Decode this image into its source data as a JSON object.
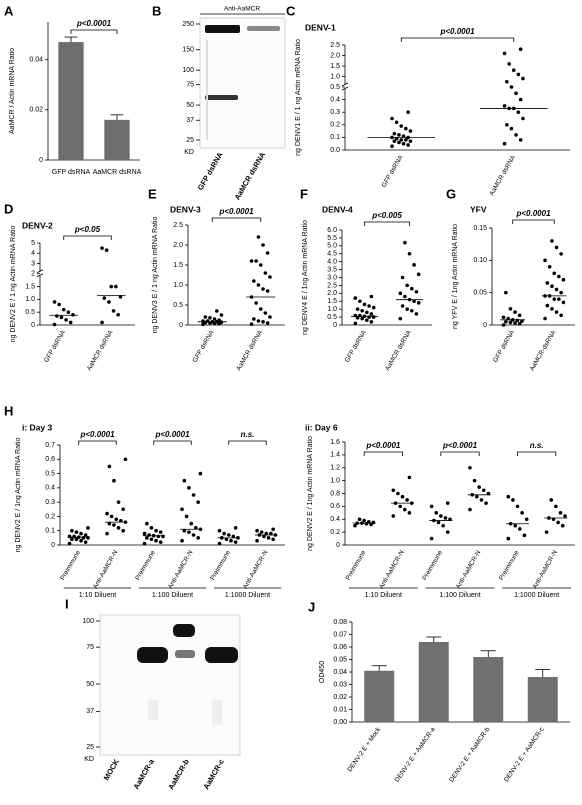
{
  "chart_data": [
    {
      "type": "bar",
      "panel": "A",
      "ylabel": "AaMCR / Actin mRNA Ratio",
      "categories": [
        "GFP dsRNA",
        "AaMCR dsRNA"
      ],
      "values": [
        0.047,
        0.016
      ],
      "errors": [
        0.002,
        0.002
      ],
      "color": "#6e6e6e",
      "ylim": [
        0,
        0.055
      ],
      "yticks": [
        0,
        0.02,
        0.04
      ],
      "annotations": [
        "p<0.0001"
      ]
    },
    {
      "type": "dot",
      "panel": "C",
      "title": "DENV-1",
      "ylabel": "ng DENV1 E / 1 ng Actin mRNA Ratio",
      "ylim": [
        0,
        2.5
      ],
      "ybreak": 0.5,
      "yticks": [
        {
          "value": 0,
          "label": "0.0"
        },
        0.1,
        0.2,
        0.3,
        0.4,
        0.5,
        {
          "value": 1,
          "label": "1.0"
        },
        1.5,
        {
          "value": 2,
          "label": "2.0"
        },
        2.5
      ],
      "annotations": [
        "p<0.0001"
      ],
      "groups": [
        {
          "name": "GFP dsRNA",
          "median": 0.1,
          "values": [
            0.03,
            0.04,
            0.05,
            0.06,
            0.07,
            0.07,
            0.08,
            0.08,
            0.09,
            0.1,
            0.1,
            0.11,
            0.12,
            0.13,
            0.15,
            0.17,
            0.19,
            0.22,
            0.25,
            0.3
          ]
        },
        {
          "name": "AaMCR dsRNA",
          "median": 0.33,
          "values": [
            0.05,
            0.08,
            0.12,
            0.17,
            0.2,
            0.25,
            0.3,
            0.33,
            0.33,
            0.35,
            0.4,
            0.45,
            0.5,
            0.75,
            0.9,
            1.1,
            1.3,
            1.6,
            2.1,
            2.3
          ]
        }
      ]
    },
    {
      "type": "dot",
      "panel": "D",
      "title": "DENV-2",
      "ylabel": "ng DENV2 E / 1 ng Actin mRNA Ratio",
      "ylim": [
        0,
        5
      ],
      "ybreak": 2,
      "yticks": [
        0,
        0.5,
        {
          "value": 1,
          "label": "1.0"
        },
        1.5,
        2,
        3,
        4,
        5
      ],
      "annotations": [
        "p<0.05"
      ],
      "groups": [
        {
          "name": "GFP dsRNA",
          "median": 0.38,
          "values": [
            0.02,
            0.1,
            0.2,
            0.3,
            0.35,
            0.4,
            0.5,
            0.6,
            0.8,
            0.9
          ]
        },
        {
          "name": "AaMCR dsRNA",
          "median": 1.15,
          "values": [
            0.1,
            0.4,
            0.55,
            0.9,
            1.05,
            1.1,
            1.5,
            1.5,
            4.3,
            4.5
          ]
        }
      ]
    },
    {
      "type": "dot",
      "panel": "E",
      "title": "DENV-3",
      "ylabel": "ng DENV3 E / 1 ng Actin mRNA Ratio",
      "ylim": [
        0,
        2.5
      ],
      "yticks": [
        0,
        0.5,
        {
          "value": 1,
          "label": "1.0"
        },
        1.5,
        {
          "value": 2,
          "label": "2.0"
        },
        2.5
      ],
      "annotations": [
        "p<0.0001"
      ],
      "groups": [
        {
          "name": "GFP dsRNA",
          "median": 0.08,
          "values": [
            0.02,
            0.03,
            0.04,
            0.05,
            0.06,
            0.07,
            0.08,
            0.08,
            0.1,
            0.1,
            0.12,
            0.15,
            0.18,
            0.2,
            0.25,
            0.35
          ]
        },
        {
          "name": "AaMCR dsRNA",
          "median": 0.7,
          "values": [
            0.02,
            0.05,
            0.08,
            0.1,
            0.15,
            0.2,
            0.3,
            0.4,
            0.55,
            0.7,
            0.85,
            0.9,
            1.0,
            1.1,
            1.2,
            1.3,
            1.5,
            1.6,
            1.6,
            1.8,
            2.0,
            2.2
          ]
        }
      ]
    },
    {
      "type": "dot",
      "panel": "F",
      "title": "DENV-4",
      "ylabel": "ng DENV4 E / 1ng Actin mRNA Ratio",
      "ylim": [
        0,
        6
      ],
      "yticks": [
        0,
        0.5,
        {
          "value": 1,
          "label": "1.0"
        },
        1.5,
        {
          "value": 2,
          "label": "2.0"
        },
        2.5,
        {
          "value": 3,
          "label": "3.0"
        },
        3.5,
        {
          "value": 4,
          "label": "4.0"
        },
        4.5,
        {
          "value": 5,
          "label": "5.0"
        },
        5.5,
        {
          "value": 6,
          "label": "6.0"
        }
      ],
      "annotations": [
        "p<0.005"
      ],
      "groups": [
        {
          "name": "GFP dsRNA",
          "median": 0.55,
          "values": [
            0.1,
            0.2,
            0.3,
            0.4,
            0.45,
            0.5,
            0.5,
            0.55,
            0.6,
            0.6,
            0.7,
            0.8,
            0.9,
            1.0,
            1.1,
            1.2,
            1.3,
            1.5,
            1.7,
            1.8
          ]
        },
        {
          "name": "AaMCR dsRNA",
          "median": 1.6,
          "values": [
            0.4,
            0.7,
            0.9,
            1.0,
            1.2,
            1.4,
            1.5,
            1.6,
            1.8,
            2.0,
            2.1,
            2.3,
            2.5,
            3.0,
            3.2,
            3.8,
            4.5,
            5.2
          ]
        }
      ]
    },
    {
      "type": "dot",
      "panel": "G",
      "title": "YFV",
      "ylabel": "ng YFV E / 1ng Actin mRNA Ratio",
      "ylim": [
        0,
        0.15
      ],
      "yticks": [
        0,
        0.05,
        {
          "value": 0.1,
          "label": "0.10"
        },
        0.15
      ],
      "annotations": [
        "p<0.0001"
      ],
      "groups": [
        {
          "name": "GFP dsRNA",
          "median": 0.008,
          "values": [
            0,
            0.002,
            0.003,
            0.004,
            0.005,
            0.006,
            0.007,
            0.008,
            0.01,
            0.012,
            0.015,
            0.02,
            0.025,
            0.05
          ]
        },
        {
          "name": "AaMCR-dsRNA",
          "median": 0.045,
          "values": [
            0.01,
            0.015,
            0.02,
            0.025,
            0.03,
            0.035,
            0.04,
            0.04,
            0.045,
            0.045,
            0.05,
            0.055,
            0.06,
            0.065,
            0.07,
            0.075,
            0.08,
            0.09,
            0.1,
            0.11,
            0.12,
            0.13
          ]
        }
      ]
    },
    {
      "type": "dot",
      "panel": "H",
      "title": "i: Day 3",
      "ylabel": "ng DENV2 E / 1ng Actin mRNA Ratio",
      "ylim": [
        0,
        0.7
      ],
      "yticks": [
        0,
        0.1,
        0.2,
        0.3,
        0.4,
        0.5,
        0.6,
        0.7
      ],
      "annotations": [
        "p<0.0001",
        "p<0.0001",
        "n.s."
      ],
      "group_labels": [
        "1:10 Diluent",
        "1:100 Diluent",
        "1:1000 Diluent"
      ],
      "groups": [
        {
          "name": "Preimmune",
          "median": 0.055,
          "values": [
            0.01,
            0.02,
            0.03,
            0.04,
            0.04,
            0.05,
            0.05,
            0.055,
            0.06,
            0.06,
            0.07,
            0.08,
            0.09,
            0.1,
            0.12
          ]
        },
        {
          "name": "Anti-AaMCR-N",
          "median": 0.16,
          "values": [
            0.08,
            0.1,
            0.12,
            0.14,
            0.15,
            0.16,
            0.17,
            0.18,
            0.2,
            0.22,
            0.25,
            0.3,
            0.45,
            0.55,
            0.6
          ]
        },
        {
          "name": "Preimmune",
          "median": 0.065,
          "values": [
            0.01,
            0.02,
            0.03,
            0.04,
            0.05,
            0.06,
            0.06,
            0.065,
            0.07,
            0.08,
            0.09,
            0.1,
            0.12,
            0.15
          ]
        },
        {
          "name": "Anti-AaMCR-N",
          "median": 0.11,
          "values": [
            0.03,
            0.05,
            0.07,
            0.09,
            0.1,
            0.11,
            0.12,
            0.15,
            0.2,
            0.25,
            0.3,
            0.35,
            0.4,
            0.45,
            0.5
          ]
        },
        {
          "name": "Preimmune",
          "median": 0.05,
          "values": [
            0.01,
            0.02,
            0.03,
            0.04,
            0.05,
            0.05,
            0.06,
            0.07,
            0.08,
            0.1,
            0.12
          ]
        },
        {
          "name": "Anti-AaMCR-N",
          "median": 0.07,
          "values": [
            0.03,
            0.04,
            0.05,
            0.06,
            0.07,
            0.07,
            0.08,
            0.08,
            0.09,
            0.1,
            0.11
          ]
        }
      ]
    },
    {
      "type": "dot",
      "title": "ii: Day 6",
      "ylabel": "ng DENV2 E / 1ng Actin mRNA Ratio",
      "ylim": [
        0,
        1.6
      ],
      "yticks": [
        0,
        0.2,
        0.4,
        0.6,
        0.8,
        {
          "value": 1,
          "label": "1.0"
        },
        1.2,
        1.4,
        1.6
      ],
      "annotations": [
        "p<0.0001",
        "p<0.0001",
        "n.s."
      ],
      "group_labels": [
        "1:10 Diluent",
        "1:100 Diluent",
        "1:1000 Diluent"
      ],
      "groups": [
        {
          "name": "Preimmune",
          "median": 0.34,
          "values": [
            0.3,
            0.32,
            0.33,
            0.34,
            0.34,
            0.35,
            0.36,
            0.38,
            0.4
          ]
        },
        {
          "name": "Anti-AaMCR-N",
          "median": 0.65,
          "values": [
            0.45,
            0.5,
            0.55,
            0.6,
            0.65,
            0.65,
            0.7,
            0.75,
            0.8,
            0.85,
            1.05
          ]
        },
        {
          "name": "Preimmune",
          "median": 0.38,
          "values": [
            0.1,
            0.2,
            0.3,
            0.35,
            0.38,
            0.4,
            0.42,
            0.45,
            0.5,
            0.6,
            0.65
          ]
        },
        {
          "name": "Anti-AaMCR-N",
          "median": 0.78,
          "values": [
            0.55,
            0.65,
            0.7,
            0.75,
            0.78,
            0.8,
            0.85,
            0.9,
            1.0,
            1.2
          ]
        },
        {
          "name": "Preimmune",
          "median": 0.33,
          "values": [
            0.1,
            0.15,
            0.25,
            0.3,
            0.33,
            0.4,
            0.5,
            0.6,
            0.7,
            0.75
          ]
        },
        {
          "name": "Anti-AaMCR-N",
          "median": 0.42,
          "values": [
            0.2,
            0.3,
            0.35,
            0.4,
            0.42,
            0.45,
            0.5,
            0.6,
            0.7
          ]
        }
      ]
    },
    {
      "type": "bar",
      "panel": "J",
      "ylabel": "OD450",
      "categories": [
        "DENV-2 E + Mock",
        "DENV-2 E + AaMCR-a",
        "DENV-2 E + AaMCR-b",
        "DENV-2 E + AaMCR-c"
      ],
      "values": [
        0.041,
        0.064,
        0.052,
        0.036
      ],
      "errors": [
        0.004,
        0.004,
        0.005,
        0.006
      ],
      "color": "#707070",
      "ylim": [
        0,
        0.08
      ],
      "yticks": [
        {
          "value": 0,
          "label": "0.00"
        },
        0.01,
        0.02,
        0.03,
        0.04,
        0.05,
        0.06,
        0.07,
        0.08
      ]
    }
  ],
  "blots": [
    {
      "panel": "B",
      "title": "Anti-AaMCR",
      "markers": [
        250,
        150,
        100,
        75,
        50,
        37,
        25
      ],
      "unit": "KD",
      "lanes": [
        "GFP dsRNA",
        "AaMCR dsRNA"
      ]
    },
    {
      "panel": "I",
      "markers": [
        100,
        75,
        50,
        37,
        25
      ],
      "unit": "KD",
      "lanes": [
        "MOCK",
        "AaMCR-a",
        "AaMCR-b",
        "AaMCR-c"
      ]
    }
  ]
}
